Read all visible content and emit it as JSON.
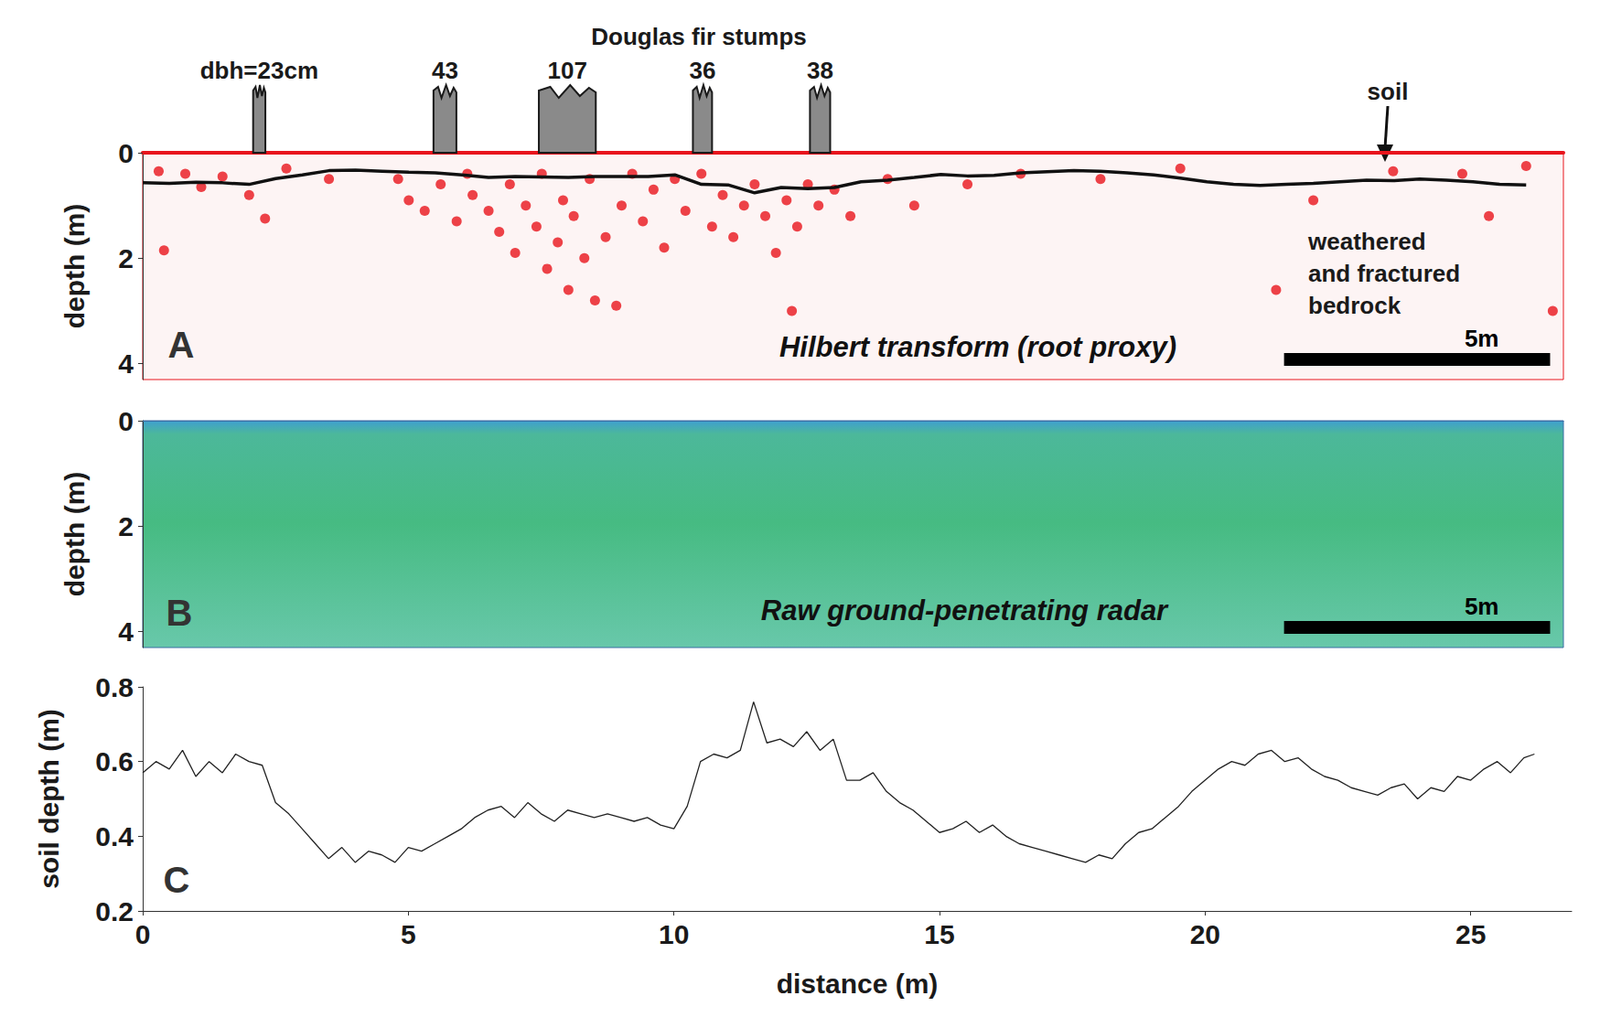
{
  "chart_data": [
    {
      "type": "scatter",
      "panel_label": "A",
      "title": "Douglas fir stumps",
      "caption": "Hilbert transform (root proxy)",
      "soil_label": "soil",
      "bedrock_label": "weathered and fractured bedrock",
      "ylabel": "depth (m)",
      "xlim": [
        0,
        26.7
      ],
      "ylim": [
        0,
        4.3
      ],
      "yticks": [
        0,
        2,
        4
      ],
      "tick_labels": "y",
      "color": "#e8141c",
      "marker": "circle",
      "stumps": {
        "x": [
          2.19,
          5.68,
          7.98,
          10.52,
          12.73
        ],
        "dbh": [
          23,
          43,
          107,
          36,
          38
        ],
        "labels": [
          "dbh=23cm",
          "43",
          "107",
          "36",
          "38"
        ]
      },
      "roots": {
        "x": [
          0.3,
          0.8,
          1.5,
          1.1,
          2.0,
          2.3,
          0.4,
          2.7,
          3.5,
          4.8,
          5.0,
          5.3,
          5.6,
          5.9,
          6.1,
          6.2,
          6.5,
          6.7,
          6.9,
          7.0,
          7.2,
          7.4,
          7.5,
          7.6,
          7.8,
          7.9,
          8.0,
          8.1,
          8.3,
          8.4,
          8.5,
          8.7,
          8.9,
          9.0,
          9.2,
          9.4,
          9.6,
          9.8,
          10.0,
          10.2,
          10.5,
          10.7,
          10.9,
          11.1,
          11.3,
          11.5,
          11.7,
          11.9,
          12.1,
          12.3,
          12.5,
          12.7,
          12.2,
          13.0,
          13.3,
          14.0,
          14.5,
          15.5,
          16.5,
          18.0,
          19.5,
          21.3,
          22.0,
          23.5,
          24.8,
          25.3,
          26.0,
          26.5
        ],
        "depth": [
          0.35,
          0.4,
          0.45,
          0.65,
          0.8,
          1.25,
          1.85,
          0.3,
          0.5,
          0.5,
          0.9,
          1.1,
          0.6,
          1.3,
          0.4,
          0.8,
          1.1,
          1.5,
          0.6,
          1.9,
          1.0,
          1.4,
          0.4,
          2.2,
          1.7,
          0.9,
          2.6,
          1.2,
          2.0,
          0.5,
          2.8,
          1.6,
          2.9,
          1.0,
          0.4,
          1.3,
          0.7,
          1.8,
          0.5,
          1.1,
          0.4,
          1.4,
          0.8,
          1.6,
          1.0,
          0.6,
          1.2,
          1.9,
          0.9,
          1.4,
          0.6,
          1.0,
          3.0,
          0.7,
          1.2,
          0.5,
          1.0,
          0.6,
          0.4,
          0.5,
          0.3,
          2.6,
          0.9,
          0.35,
          0.4,
          1.2,
          0.25,
          3.0
        ]
      },
      "soil_boundary": {
        "color": "#111111",
        "line_style": "solid",
        "x": [
          0,
          0.5,
          1,
          1.5,
          2,
          2.5,
          3,
          3.5,
          4,
          4.5,
          5,
          5.5,
          6,
          6.5,
          7,
          7.5,
          8,
          8.5,
          9,
          9.5,
          10,
          10.5,
          11,
          11.5,
          12,
          12.5,
          13,
          13.5,
          14,
          14.5,
          15,
          15.5,
          16,
          16.5,
          17,
          17.5,
          18,
          18.5,
          19,
          19.5,
          20,
          20.5,
          21,
          21.5,
          22,
          22.5,
          23,
          23.5,
          24,
          24.5,
          25,
          25.5,
          26
        ],
        "depth": [
          0.57,
          0.58,
          0.56,
          0.57,
          0.6,
          0.49,
          0.42,
          0.34,
          0.33,
          0.35,
          0.37,
          0.38,
          0.42,
          0.47,
          0.45,
          0.46,
          0.47,
          0.45,
          0.45,
          0.45,
          0.42,
          0.6,
          0.61,
          0.76,
          0.66,
          0.68,
          0.66,
          0.55,
          0.52,
          0.47,
          0.41,
          0.44,
          0.43,
          0.38,
          0.36,
          0.34,
          0.35,
          0.38,
          0.42,
          0.48,
          0.55,
          0.6,
          0.62,
          0.6,
          0.58,
          0.55,
          0.52,
          0.53,
          0.5,
          0.52,
          0.55,
          0.6,
          0.61
        ]
      },
      "scale_bar": {
        "length": 5,
        "label": "5m"
      }
    },
    {
      "type": "radargram",
      "panel_label": "B",
      "caption": "Raw ground-penetrating radar",
      "ylabel": "depth (m)",
      "xlim": [
        0,
        26.7
      ],
      "ylim": [
        0,
        4.3
      ],
      "yticks": [
        0,
        2,
        4
      ],
      "tick_labels": "y",
      "scale_bar": {
        "length": 5,
        "label": "5m"
      }
    },
    {
      "type": "line",
      "panel_label": "C",
      "xlabel": "distance (m)",
      "ylabel": "soil depth (m)",
      "color": "#222222",
      "line_style": "solid",
      "xlim": [
        0,
        26.9
      ],
      "ylim": [
        0.2,
        0.8
      ],
      "xticks": [
        0,
        5,
        10,
        15,
        20,
        25
      ],
      "yticks": [
        0.2,
        0.4,
        0.6,
        0.8
      ],
      "x": [
        0,
        0.25,
        0.5,
        0.75,
        1,
        1.25,
        1.5,
        1.75,
        2,
        2.25,
        2.5,
        2.75,
        3,
        3.25,
        3.5,
        3.75,
        4,
        4.25,
        4.5,
        4.75,
        5,
        5.25,
        5.5,
        5.75,
        6,
        6.25,
        6.5,
        6.75,
        7,
        7.25,
        7.5,
        7.75,
        8,
        8.25,
        8.5,
        8.75,
        9,
        9.25,
        9.5,
        9.75,
        10,
        10.25,
        10.5,
        10.75,
        11,
        11.25,
        11.5,
        11.75,
        12,
        12.25,
        12.5,
        12.75,
        13,
        13.25,
        13.5,
        13.75,
        14,
        14.25,
        14.5,
        14.75,
        15,
        15.25,
        15.5,
        15.75,
        16,
        16.25,
        16.5,
        16.75,
        17,
        17.25,
        17.5,
        17.75,
        18,
        18.25,
        18.5,
        18.75,
        19,
        19.25,
        19.5,
        19.75,
        20,
        20.25,
        20.5,
        20.75,
        21,
        21.25,
        21.5,
        21.75,
        22,
        22.25,
        22.5,
        22.75,
        23,
        23.25,
        23.5,
        23.75,
        24,
        24.25,
        24.5,
        24.75,
        25,
        25.25,
        25.5,
        25.75,
        26,
        26.2
      ],
      "values": [
        0.57,
        0.6,
        0.58,
        0.63,
        0.56,
        0.6,
        0.57,
        0.62,
        0.6,
        0.59,
        0.49,
        0.46,
        0.42,
        0.38,
        0.34,
        0.37,
        0.33,
        0.36,
        0.35,
        0.33,
        0.37,
        0.36,
        0.38,
        0.4,
        0.42,
        0.45,
        0.47,
        0.48,
        0.45,
        0.49,
        0.46,
        0.44,
        0.47,
        0.46,
        0.45,
        0.46,
        0.45,
        0.44,
        0.45,
        0.43,
        0.42,
        0.48,
        0.6,
        0.62,
        0.61,
        0.63,
        0.76,
        0.65,
        0.66,
        0.64,
        0.68,
        0.63,
        0.66,
        0.55,
        0.55,
        0.57,
        0.52,
        0.49,
        0.47,
        0.44,
        0.41,
        0.42,
        0.44,
        0.41,
        0.43,
        0.4,
        0.38,
        0.37,
        0.36,
        0.35,
        0.34,
        0.33,
        0.35,
        0.34,
        0.38,
        0.41,
        0.42,
        0.45,
        0.48,
        0.52,
        0.55,
        0.58,
        0.6,
        0.59,
        0.62,
        0.63,
        0.6,
        0.61,
        0.58,
        0.56,
        0.55,
        0.53,
        0.52,
        0.51,
        0.53,
        0.54,
        0.5,
        0.53,
        0.52,
        0.56,
        0.55,
        0.58,
        0.6,
        0.57,
        0.61,
        0.62
      ]
    }
  ]
}
